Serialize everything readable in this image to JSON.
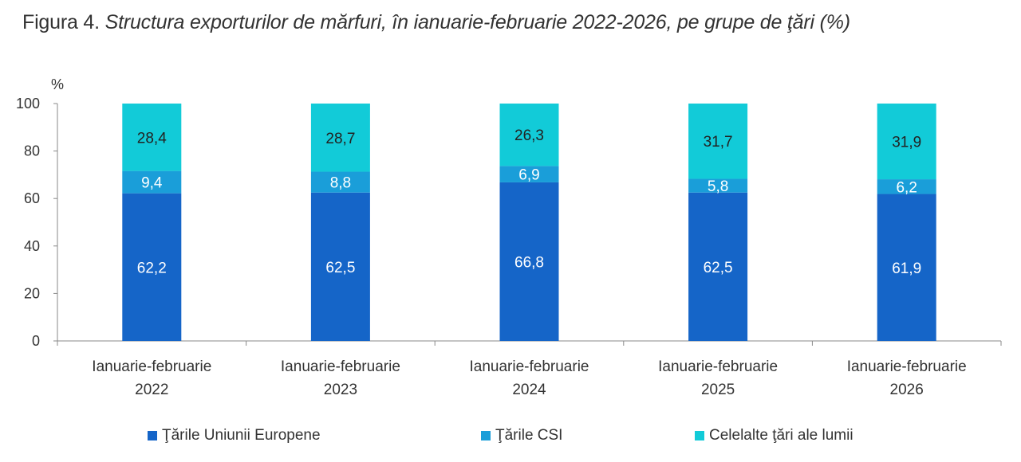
{
  "figure": {
    "prefix": "Figura 4.",
    "title": "Structura exporturilor de mărfuri, în ianuarie-februarie 2022-2026, pe grupe de ţări",
    "unit": "(%)"
  },
  "chart_data": {
    "type": "bar",
    "stacked": true,
    "ylabel": "%",
    "ylim": [
      0,
      100
    ],
    "yticks": [
      0,
      20,
      40,
      60,
      80,
      100
    ],
    "categories": [
      [
        "Ianuarie-februarie",
        "2022"
      ],
      [
        "Ianuarie-februarie",
        "2023"
      ],
      [
        "Ianuarie-februarie",
        "2024"
      ],
      [
        "Ianuarie-februarie",
        "2025"
      ],
      [
        "Ianuarie-februarie",
        "2026"
      ]
    ],
    "series": [
      {
        "name": "Ţările Uniunii Europene",
        "color": "#1565c8",
        "label_color": "#ffffff",
        "values": [
          62.2,
          62.5,
          66.8,
          62.5,
          61.9
        ],
        "labels": [
          "62,2",
          "62,5",
          "66,8",
          "62,5",
          "61,9"
        ]
      },
      {
        "name": "Ţările CSI",
        "color": "#1a9ed9",
        "label_color": "#ffffff",
        "values": [
          9.4,
          8.8,
          6.9,
          5.8,
          6.2
        ],
        "labels": [
          "9,4",
          "8,8",
          "6,9",
          "5,8",
          "6,2"
        ]
      },
      {
        "name": "Celelalte ţări ale lumii",
        "color": "#12cbd8",
        "label_color": "#222222",
        "values": [
          28.4,
          28.7,
          26.3,
          31.7,
          31.9
        ],
        "labels": [
          "28,4",
          "28,7",
          "26,3",
          "31,7",
          "31,9"
        ]
      }
    ],
    "legend_position": "bottom",
    "grid": false
  }
}
